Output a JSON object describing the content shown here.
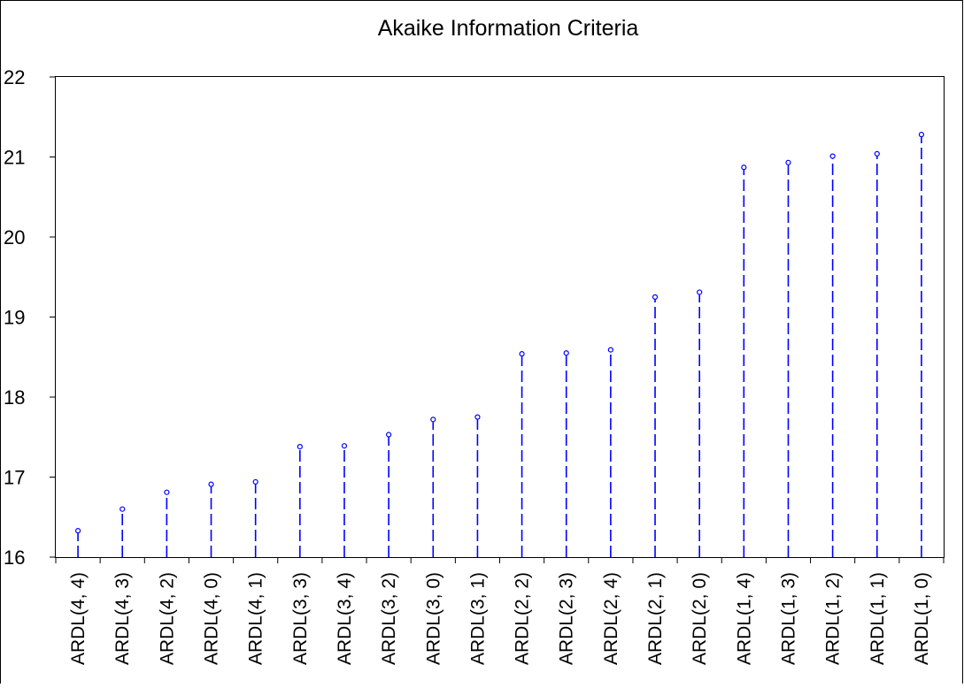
{
  "chart_data": {
    "type": "scatter",
    "style": "stem",
    "title": "Akaike Information Criteria",
    "xlabel": "",
    "ylabel": "",
    "categories": [
      "ARDL(4, 4)",
      "ARDL(4, 3)",
      "ARDL(4, 2)",
      "ARDL(4, 0)",
      "ARDL(4, 1)",
      "ARDL(3, 3)",
      "ARDL(3, 4)",
      "ARDL(3, 2)",
      "ARDL(3, 0)",
      "ARDL(3, 1)",
      "ARDL(2, 2)",
      "ARDL(2, 3)",
      "ARDL(2, 4)",
      "ARDL(2, 1)",
      "ARDL(2, 0)",
      "ARDL(1, 4)",
      "ARDL(1, 3)",
      "ARDL(1, 2)",
      "ARDL(1, 1)",
      "ARDL(1, 0)"
    ],
    "values": [
      16.33,
      16.6,
      16.81,
      16.91,
      16.94,
      17.38,
      17.39,
      17.53,
      17.72,
      17.75,
      18.54,
      18.55,
      18.59,
      19.25,
      19.31,
      20.87,
      20.93,
      21.01,
      21.04,
      21.28
    ],
    "ylim": [
      16,
      22
    ],
    "yticks": [
      16,
      17,
      18,
      19,
      20,
      21,
      22
    ],
    "grid": false,
    "legend": "none",
    "colors": {
      "series": "#0000ff",
      "axis": "#000000",
      "background": "#ffffff"
    }
  }
}
